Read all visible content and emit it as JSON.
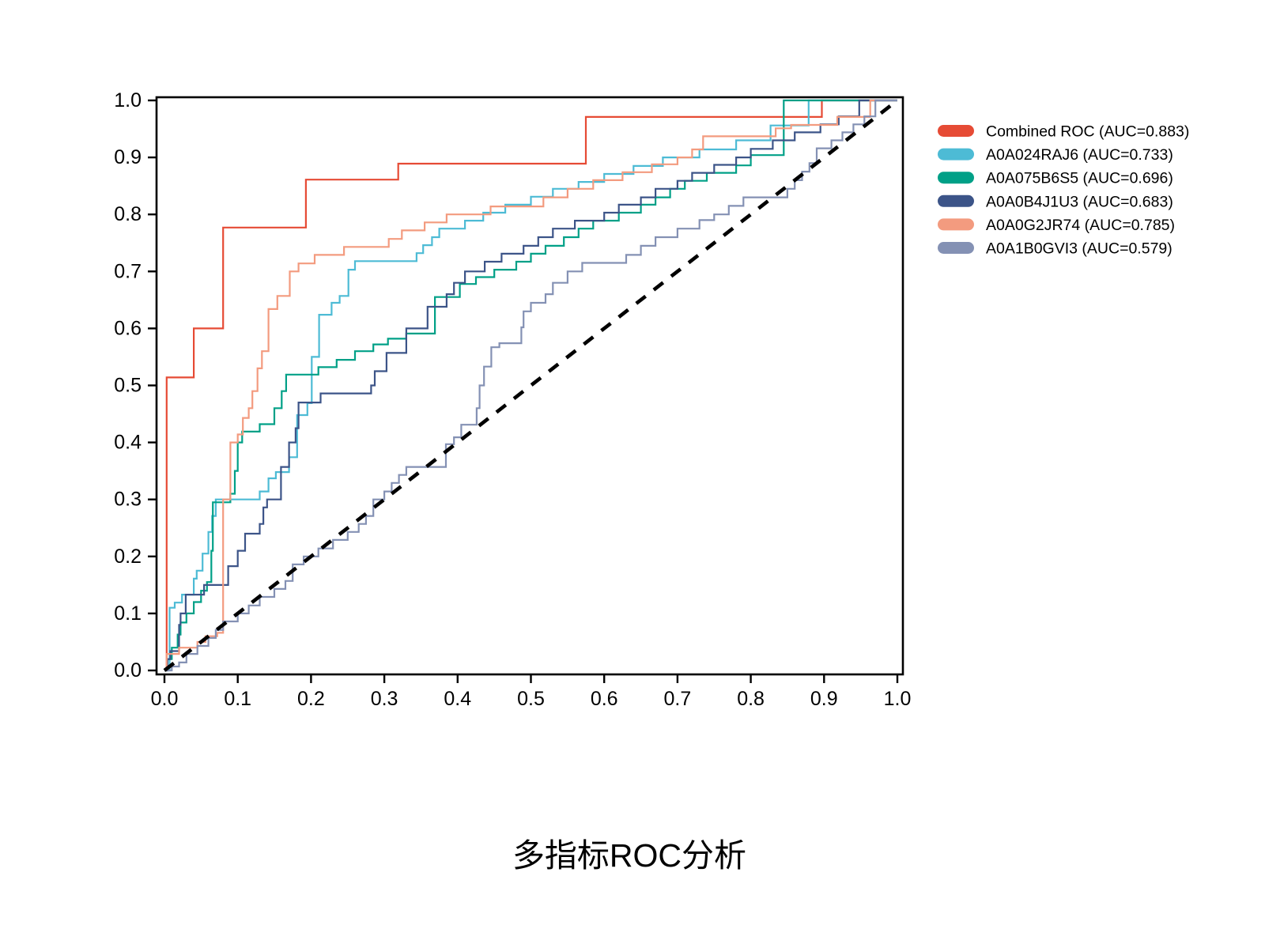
{
  "chart_data": {
    "type": "line",
    "subtype": "roc-step-curves",
    "title": "多指标ROC分析",
    "xlabel": "",
    "ylabel": "",
    "xlim": [
      0,
      1
    ],
    "ylim": [
      0,
      1
    ],
    "grid": false,
    "legend_position": "right-outside",
    "background_color": "#ffffff",
    "axis_color": "#000000",
    "x_ticks": [
      {
        "v": 0.0,
        "label": "0.0"
      },
      {
        "v": 0.1,
        "label": "0.1"
      },
      {
        "v": 0.2,
        "label": "0.2"
      },
      {
        "v": 0.3,
        "label": "0.3"
      },
      {
        "v": 0.4,
        "label": "0.4"
      },
      {
        "v": 0.5,
        "label": "0.5"
      },
      {
        "v": 0.6,
        "label": "0.6"
      },
      {
        "v": 0.7,
        "label": "0.7"
      },
      {
        "v": 0.8,
        "label": "0.8"
      },
      {
        "v": 0.9,
        "label": "0.9"
      },
      {
        "v": 1.0,
        "label": "1.0"
      }
    ],
    "y_ticks": [
      {
        "v": 0.0,
        "label": "0.0"
      },
      {
        "v": 0.1,
        "label": "0.1"
      },
      {
        "v": 0.2,
        "label": "0.2"
      },
      {
        "v": 0.3,
        "label": "0.3"
      },
      {
        "v": 0.4,
        "label": "0.4"
      },
      {
        "v": 0.5,
        "label": "0.5"
      },
      {
        "v": 0.6,
        "label": "0.6"
      },
      {
        "v": 0.7,
        "label": "0.7"
      },
      {
        "v": 0.8,
        "label": "0.8"
      },
      {
        "v": 0.9,
        "label": "0.9"
      },
      {
        "v": 1.0,
        "label": "1.0"
      }
    ],
    "reference_line": {
      "name": "chance-diagonal",
      "style": "dashed",
      "color": "#000000",
      "from": [
        0,
        0
      ],
      "to": [
        1,
        1
      ]
    },
    "series": [
      {
        "name": "Combined ROC",
        "auc": 0.883,
        "legend_label": "Combined ROC (AUC=0.883)",
        "color": "#E64B35",
        "points": [
          [
            0,
            0
          ],
          [
            0.003,
            0.514
          ],
          [
            0.04,
            0.6
          ],
          [
            0.08,
            0.777
          ],
          [
            0.193,
            0.861
          ],
          [
            0.319,
            0.889
          ],
          [
            0.575,
            0.971
          ],
          [
            0.897,
            1
          ],
          [
            1,
            1
          ]
        ]
      },
      {
        "name": "A0A024RAJ6",
        "auc": 0.733,
        "legend_label": "A0A024RAJ6 (AUC=0.733)",
        "color": "#4DBBD5",
        "points": [
          [
            0,
            0
          ],
          [
            0.007,
            0.11
          ],
          [
            0.014,
            0.119
          ],
          [
            0.024,
            0.133
          ],
          [
            0.04,
            0.161
          ],
          [
            0.044,
            0.175
          ],
          [
            0.052,
            0.205
          ],
          [
            0.06,
            0.243
          ],
          [
            0.065,
            0.271
          ],
          [
            0.07,
            0.3
          ],
          [
            0.13,
            0.314
          ],
          [
            0.142,
            0.337
          ],
          [
            0.152,
            0.348
          ],
          [
            0.17,
            0.374
          ],
          [
            0.181,
            0.448
          ],
          [
            0.195,
            0.469
          ],
          [
            0.201,
            0.55
          ],
          [
            0.211,
            0.624
          ],
          [
            0.228,
            0.645
          ],
          [
            0.239,
            0.657
          ],
          [
            0.251,
            0.703
          ],
          [
            0.26,
            0.718
          ],
          [
            0.344,
            0.732
          ],
          [
            0.353,
            0.746
          ],
          [
            0.365,
            0.76
          ],
          [
            0.375,
            0.775
          ],
          [
            0.41,
            0.789
          ],
          [
            0.435,
            0.803
          ],
          [
            0.465,
            0.817
          ],
          [
            0.5,
            0.831
          ],
          [
            0.53,
            0.845
          ],
          [
            0.565,
            0.857
          ],
          [
            0.6,
            0.871
          ],
          [
            0.64,
            0.885
          ],
          [
            0.68,
            0.9
          ],
          [
            0.73,
            0.914
          ],
          [
            0.78,
            0.93
          ],
          [
            0.827,
            0.956
          ],
          [
            0.879,
            1
          ],
          [
            1,
            1
          ]
        ]
      },
      {
        "name": "A0A075B6S5",
        "auc": 0.696,
        "legend_label": "A0A075B6S5 (AUC=0.696)",
        "color": "#00A087",
        "points": [
          [
            0,
            0
          ],
          [
            0.004,
            0.02
          ],
          [
            0.01,
            0.04
          ],
          [
            0.018,
            0.063
          ],
          [
            0.022,
            0.084
          ],
          [
            0.03,
            0.1
          ],
          [
            0.04,
            0.12
          ],
          [
            0.05,
            0.14
          ],
          [
            0.058,
            0.155
          ],
          [
            0.064,
            0.21
          ],
          [
            0.066,
            0.295
          ],
          [
            0.09,
            0.31
          ],
          [
            0.096,
            0.35
          ],
          [
            0.1,
            0.4
          ],
          [
            0.106,
            0.419
          ],
          [
            0.13,
            0.432
          ],
          [
            0.15,
            0.46
          ],
          [
            0.16,
            0.49
          ],
          [
            0.166,
            0.519
          ],
          [
            0.21,
            0.532
          ],
          [
            0.235,
            0.545
          ],
          [
            0.26,
            0.56
          ],
          [
            0.285,
            0.572
          ],
          [
            0.305,
            0.582
          ],
          [
            0.33,
            0.591
          ],
          [
            0.369,
            0.655
          ],
          [
            0.403,
            0.678
          ],
          [
            0.425,
            0.69
          ],
          [
            0.45,
            0.703
          ],
          [
            0.48,
            0.717
          ],
          [
            0.5,
            0.731
          ],
          [
            0.52,
            0.745
          ],
          [
            0.545,
            0.76
          ],
          [
            0.565,
            0.775
          ],
          [
            0.585,
            0.789
          ],
          [
            0.62,
            0.803
          ],
          [
            0.65,
            0.817
          ],
          [
            0.67,
            0.83
          ],
          [
            0.69,
            0.845
          ],
          [
            0.71,
            0.859
          ],
          [
            0.74,
            0.873
          ],
          [
            0.78,
            0.886
          ],
          [
            0.8,
            0.904
          ],
          [
            0.845,
            1
          ],
          [
            1,
            1
          ]
        ]
      },
      {
        "name": "A0A0B4J1U3",
        "auc": 0.683,
        "legend_label": "A0A0B4J1U3 (AUC=0.683)",
        "color": "#3C5488",
        "points": [
          [
            0,
            0
          ],
          [
            0.004,
            0.02
          ],
          [
            0.008,
            0.034
          ],
          [
            0.02,
            0.08
          ],
          [
            0.022,
            0.1
          ],
          [
            0.029,
            0.133
          ],
          [
            0.054,
            0.15
          ],
          [
            0.087,
            0.183
          ],
          [
            0.1,
            0.21
          ],
          [
            0.11,
            0.24
          ],
          [
            0.13,
            0.257
          ],
          [
            0.135,
            0.286
          ],
          [
            0.14,
            0.3
          ],
          [
            0.159,
            0.357
          ],
          [
            0.17,
            0.4
          ],
          [
            0.179,
            0.425
          ],
          [
            0.183,
            0.47
          ],
          [
            0.213,
            0.486
          ],
          [
            0.282,
            0.5
          ],
          [
            0.287,
            0.525
          ],
          [
            0.303,
            0.557
          ],
          [
            0.33,
            0.6
          ],
          [
            0.359,
            0.638
          ],
          [
            0.385,
            0.66
          ],
          [
            0.395,
            0.68
          ],
          [
            0.41,
            0.7
          ],
          [
            0.437,
            0.717
          ],
          [
            0.46,
            0.731
          ],
          [
            0.49,
            0.745
          ],
          [
            0.51,
            0.76
          ],
          [
            0.53,
            0.775
          ],
          [
            0.56,
            0.789
          ],
          [
            0.6,
            0.803
          ],
          [
            0.62,
            0.817
          ],
          [
            0.65,
            0.83
          ],
          [
            0.67,
            0.845
          ],
          [
            0.7,
            0.859
          ],
          [
            0.72,
            0.873
          ],
          [
            0.75,
            0.887
          ],
          [
            0.78,
            0.9
          ],
          [
            0.8,
            0.915
          ],
          [
            0.83,
            0.93
          ],
          [
            0.86,
            0.944
          ],
          [
            0.895,
            0.958
          ],
          [
            0.92,
            0.972
          ],
          [
            0.948,
            1
          ],
          [
            1,
            1
          ]
        ]
      },
      {
        "name": "A0A0G2JR74",
        "auc": 0.785,
        "legend_label": "A0A0G2JR74 (AUC=0.785)",
        "color": "#F39B7F",
        "points": [
          [
            0,
            0
          ],
          [
            0.003,
            0.029
          ],
          [
            0.02,
            0.04
          ],
          [
            0.045,
            0.05
          ],
          [
            0.056,
            0.06
          ],
          [
            0.072,
            0.066
          ],
          [
            0.08,
            0.3
          ],
          [
            0.09,
            0.4
          ],
          [
            0.1,
            0.414
          ],
          [
            0.107,
            0.443
          ],
          [
            0.115,
            0.46
          ],
          [
            0.12,
            0.49
          ],
          [
            0.127,
            0.53
          ],
          [
            0.133,
            0.56
          ],
          [
            0.142,
            0.634
          ],
          [
            0.154,
            0.657
          ],
          [
            0.171,
            0.7
          ],
          [
            0.183,
            0.714
          ],
          [
            0.205,
            0.729
          ],
          [
            0.245,
            0.743
          ],
          [
            0.306,
            0.757
          ],
          [
            0.324,
            0.772
          ],
          [
            0.355,
            0.786
          ],
          [
            0.385,
            0.8
          ],
          [
            0.445,
            0.814
          ],
          [
            0.517,
            0.83
          ],
          [
            0.55,
            0.845
          ],
          [
            0.585,
            0.86
          ],
          [
            0.625,
            0.874
          ],
          [
            0.665,
            0.888
          ],
          [
            0.7,
            0.9
          ],
          [
            0.72,
            0.914
          ],
          [
            0.735,
            0.937
          ],
          [
            0.834,
            0.951
          ],
          [
            0.855,
            0.957
          ],
          [
            0.918,
            0.971
          ],
          [
            0.963,
            1
          ],
          [
            1,
            1
          ]
        ]
      },
      {
        "name": "A0A1B0GVI3",
        "auc": 0.579,
        "legend_label": "A0A1B0GVI3 (AUC=0.579)",
        "color": "#8491B4",
        "points": [
          [
            0,
            0
          ],
          [
            0.01,
            0.007
          ],
          [
            0.02,
            0.014
          ],
          [
            0.03,
            0.029
          ],
          [
            0.045,
            0.043
          ],
          [
            0.06,
            0.057
          ],
          [
            0.07,
            0.071
          ],
          [
            0.08,
            0.086
          ],
          [
            0.1,
            0.1
          ],
          [
            0.115,
            0.114
          ],
          [
            0.13,
            0.129
          ],
          [
            0.15,
            0.143
          ],
          [
            0.165,
            0.157
          ],
          [
            0.175,
            0.186
          ],
          [
            0.19,
            0.2
          ],
          [
            0.21,
            0.214
          ],
          [
            0.23,
            0.229
          ],
          [
            0.25,
            0.243
          ],
          [
            0.265,
            0.257
          ],
          [
            0.275,
            0.271
          ],
          [
            0.285,
            0.3
          ],
          [
            0.3,
            0.314
          ],
          [
            0.31,
            0.329
          ],
          [
            0.32,
            0.343
          ],
          [
            0.33,
            0.357
          ],
          [
            0.384,
            0.397
          ],
          [
            0.395,
            0.409
          ],
          [
            0.405,
            0.431
          ],
          [
            0.426,
            0.46
          ],
          [
            0.43,
            0.5
          ],
          [
            0.436,
            0.533
          ],
          [
            0.446,
            0.567
          ],
          [
            0.457,
            0.574
          ],
          [
            0.487,
            0.602
          ],
          [
            0.49,
            0.63
          ],
          [
            0.5,
            0.645
          ],
          [
            0.52,
            0.66
          ],
          [
            0.53,
            0.68
          ],
          [
            0.55,
            0.7
          ],
          [
            0.57,
            0.715
          ],
          [
            0.63,
            0.729
          ],
          [
            0.65,
            0.745
          ],
          [
            0.67,
            0.76
          ],
          [
            0.7,
            0.775
          ],
          [
            0.73,
            0.79
          ],
          [
            0.75,
            0.8
          ],
          [
            0.77,
            0.815
          ],
          [
            0.79,
            0.83
          ],
          [
            0.85,
            0.845
          ],
          [
            0.86,
            0.86
          ],
          [
            0.87,
            0.875
          ],
          [
            0.88,
            0.89
          ],
          [
            0.89,
            0.916
          ],
          [
            0.91,
            0.93
          ],
          [
            0.925,
            0.944
          ],
          [
            0.94,
            0.958
          ],
          [
            0.955,
            0.972
          ],
          [
            0.97,
            1
          ],
          [
            1,
            1
          ]
        ]
      }
    ]
  }
}
